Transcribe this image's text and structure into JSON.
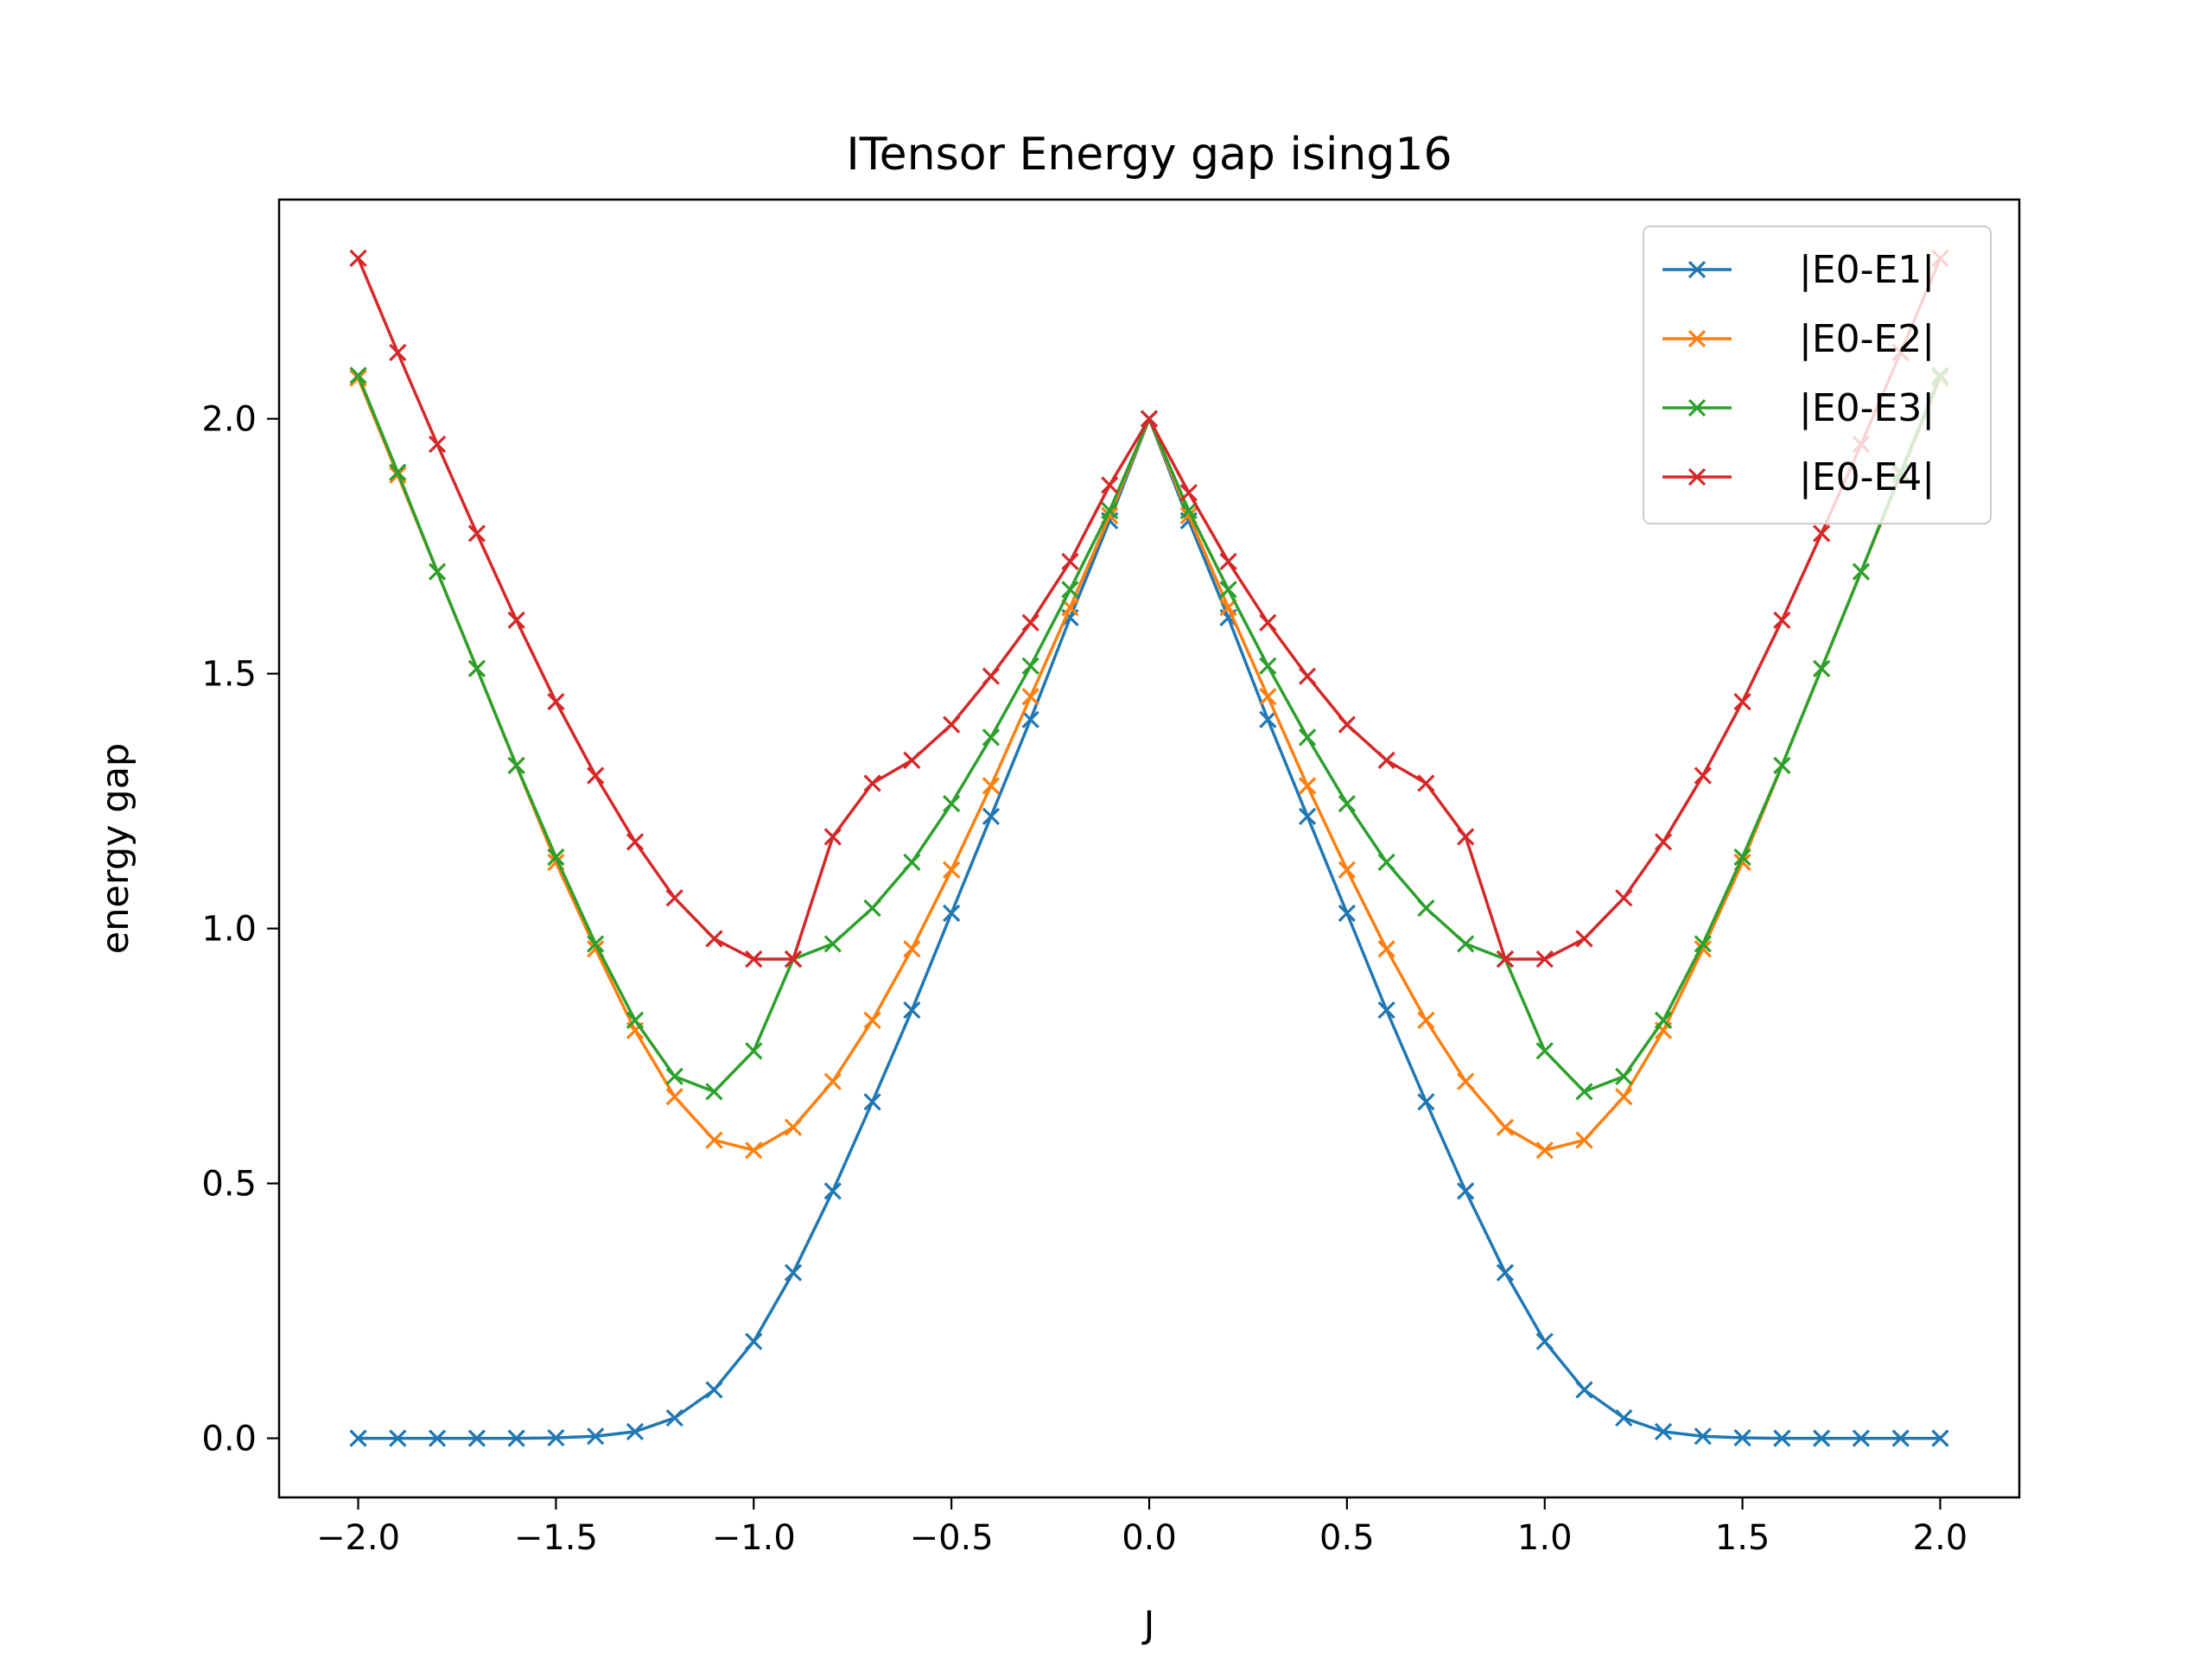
{
  "chart_data": {
    "type": "line",
    "title": "ITensor Energy gap ising16",
    "xlabel": "J",
    "ylabel": "energy gap",
    "xlim": [
      -2.2,
      2.2
    ],
    "ylim": [
      -0.116,
      2.43
    ],
    "xticks": [
      -2.0,
      -1.5,
      -1.0,
      -0.5,
      0.0,
      0.5,
      1.0,
      1.5,
      2.0
    ],
    "yticks": [
      0.0,
      0.5,
      1.0,
      1.5,
      2.0
    ],
    "xtick_labels": [
      "−2.0",
      "−1.5",
      "−1.0",
      "−0.5",
      "0.0",
      "0.5",
      "1.0",
      "1.5",
      "2.0"
    ],
    "ytick_labels": [
      "0.0",
      "0.5",
      "1.0",
      "1.5",
      "2.0"
    ],
    "grid": false,
    "legend_position": "top-right",
    "marker": "x",
    "x": [
      -2.0,
      -1.9,
      -1.8,
      -1.7,
      -1.6,
      -1.5,
      -1.4,
      -1.3,
      -1.2,
      -1.1,
      -1.0,
      -0.9,
      -0.8,
      -0.7,
      -0.6,
      -0.5,
      -0.4,
      -0.3,
      -0.2,
      -0.1,
      0.0,
      0.1,
      0.2,
      0.3,
      0.4,
      0.5,
      0.6,
      0.7,
      0.8,
      0.9,
      1.0,
      1.1,
      1.2,
      1.3,
      1.4,
      1.5,
      1.6,
      1.7,
      1.8,
      1.9,
      2.0
    ],
    "series": [
      {
        "name": "|E0-E1|",
        "color": "#1f77b4",
        "values": [
          0.0,
          0.0,
          0.0,
          0.0,
          0.0,
          0.001,
          0.004,
          0.013,
          0.04,
          0.095,
          0.19,
          0.325,
          0.485,
          0.66,
          0.84,
          1.03,
          1.22,
          1.41,
          1.61,
          1.8,
          2.0,
          1.8,
          1.61,
          1.41,
          1.22,
          1.03,
          0.84,
          0.66,
          0.485,
          0.325,
          0.19,
          0.095,
          0.04,
          0.013,
          0.004,
          0.001,
          0.0,
          0.0,
          0.0,
          0.0,
          0.0
        ]
      },
      {
        "name": "|E0-E2|",
        "color": "#ff7f0e",
        "values": [
          2.08,
          1.89,
          1.7,
          1.51,
          1.32,
          1.13,
          0.96,
          0.8,
          0.67,
          0.585,
          0.565,
          0.61,
          0.7,
          0.82,
          0.96,
          1.115,
          1.28,
          1.455,
          1.63,
          1.81,
          2.0,
          1.81,
          1.63,
          1.455,
          1.28,
          1.115,
          0.96,
          0.82,
          0.7,
          0.61,
          0.565,
          0.585,
          0.67,
          0.8,
          0.96,
          1.13,
          1.32,
          1.51,
          1.7,
          1.89,
          2.08
        ]
      },
      {
        "name": "|E0-E3|",
        "color": "#2ca02c",
        "values": [
          2.085,
          1.895,
          1.7,
          1.51,
          1.32,
          1.14,
          0.97,
          0.82,
          0.71,
          0.68,
          0.76,
          0.94,
          0.97,
          1.04,
          1.13,
          1.245,
          1.375,
          1.515,
          1.665,
          1.82,
          2.0,
          1.82,
          1.665,
          1.515,
          1.375,
          1.245,
          1.13,
          1.04,
          0.97,
          0.94,
          0.76,
          0.68,
          0.71,
          0.82,
          0.97,
          1.14,
          1.32,
          1.51,
          1.7,
          1.895,
          2.085
        ]
      },
      {
        "name": "|E0-E4|",
        "color": "#d62728",
        "values": [
          2.315,
          2.13,
          1.95,
          1.775,
          1.605,
          1.445,
          1.3,
          1.17,
          1.06,
          0.98,
          0.94,
          0.94,
          1.18,
          1.285,
          1.33,
          1.4,
          1.495,
          1.6,
          1.72,
          1.87,
          2.0,
          1.855,
          1.72,
          1.6,
          1.495,
          1.4,
          1.33,
          1.285,
          1.18,
          0.94,
          0.94,
          0.98,
          1.06,
          1.17,
          1.3,
          1.445,
          1.605,
          1.775,
          1.95,
          2.13,
          2.315
        ]
      }
    ]
  }
}
